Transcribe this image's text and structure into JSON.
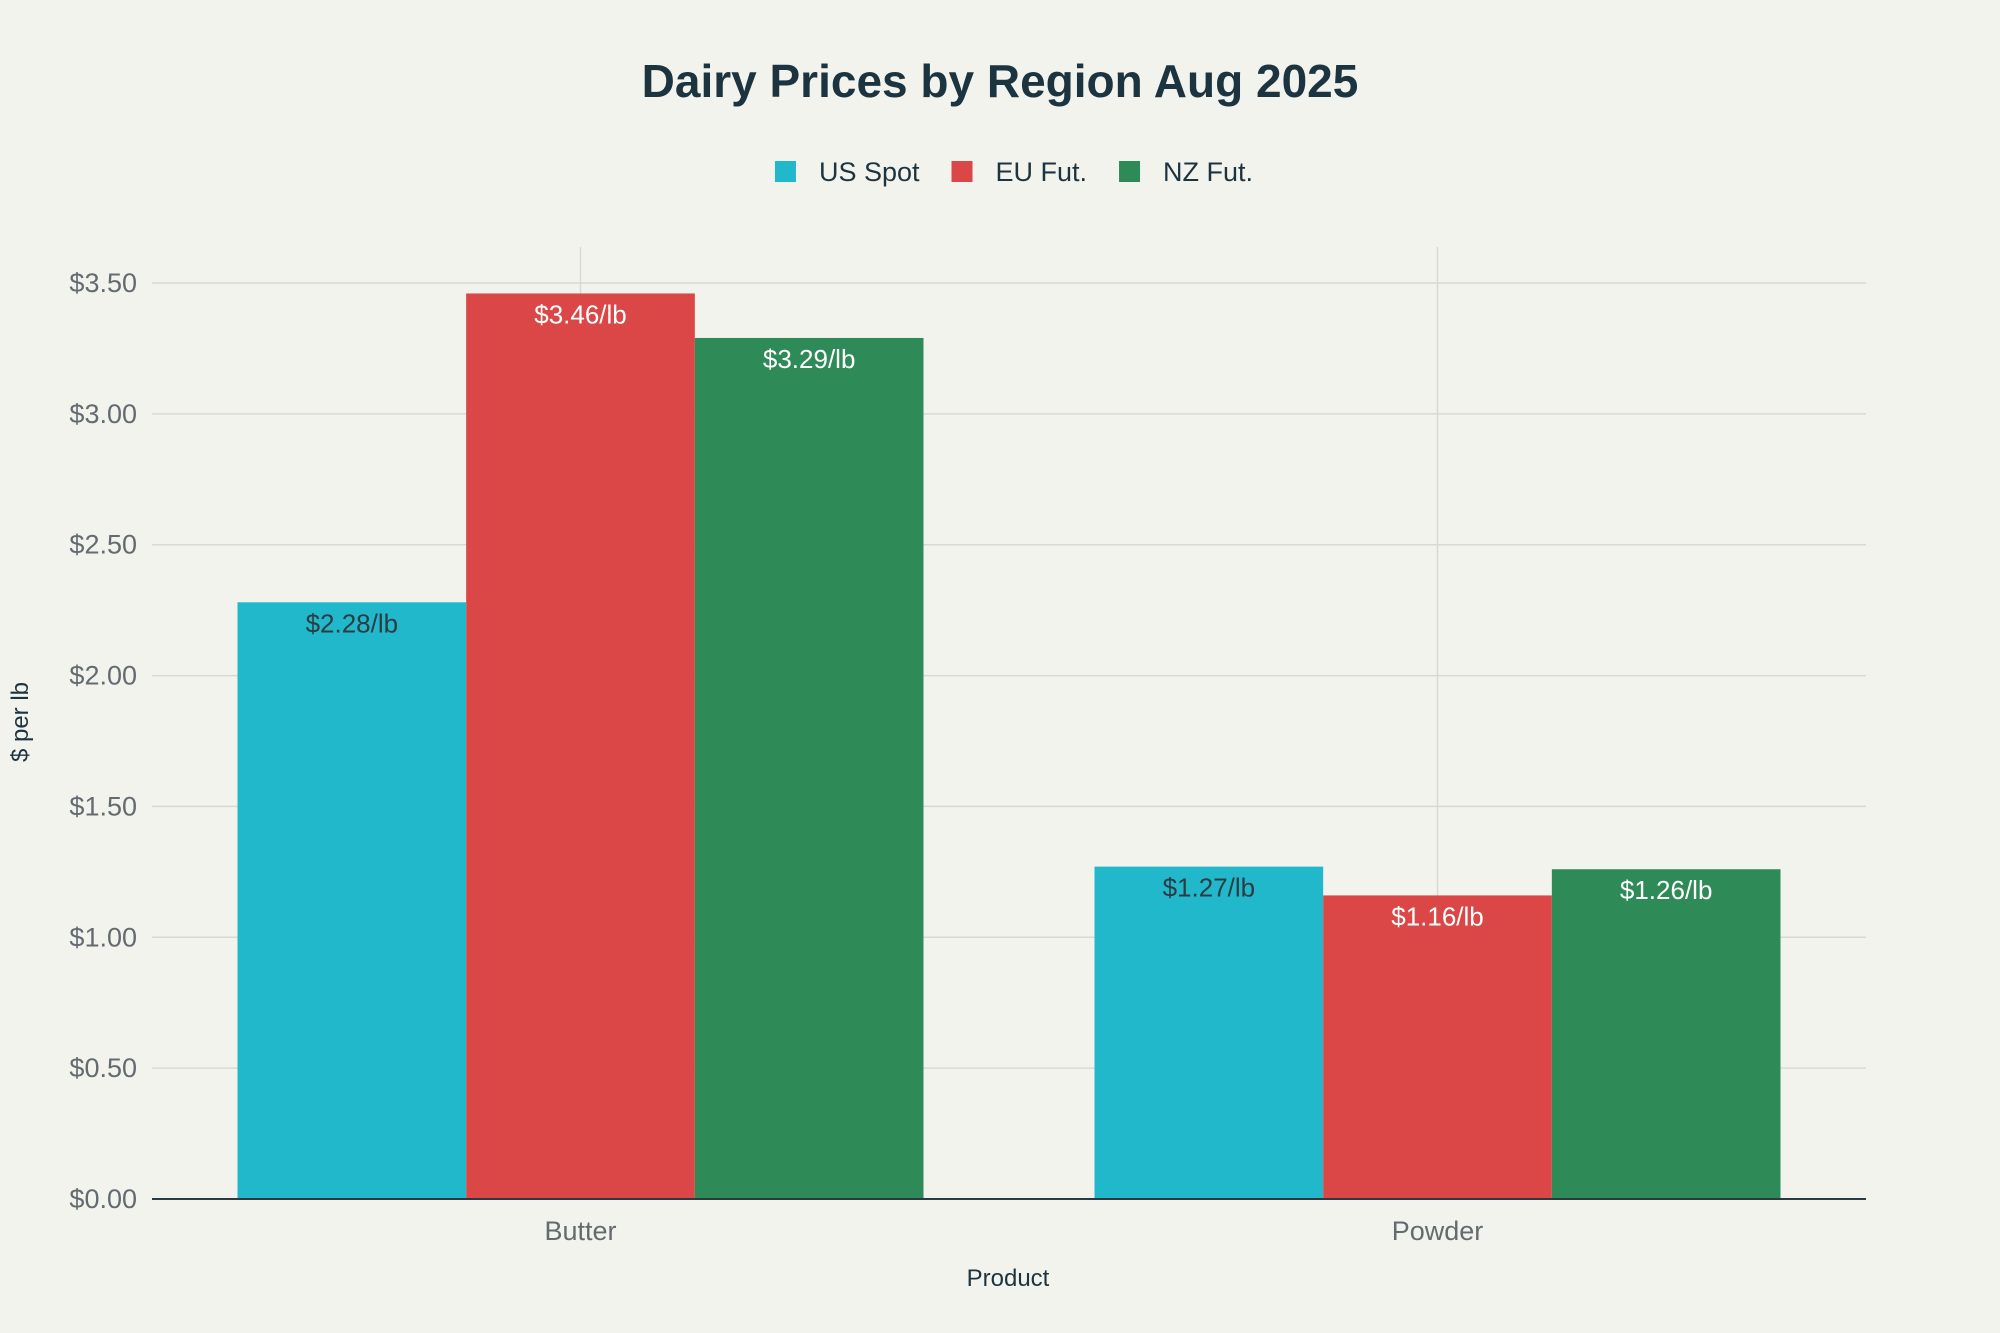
{
  "chart_data": {
    "type": "bar",
    "title": "Dairy Prices by Region Aug 2025",
    "xlabel": "Product",
    "ylabel": "$ per lb",
    "categories": [
      "Butter",
      "Powder"
    ],
    "series": [
      {
        "name": "US Spot",
        "color": "#21b8cc",
        "values": [
          2.28,
          1.27
        ],
        "labels": [
          "$2.28/lb",
          "$1.27/lb"
        ],
        "label_color": "#2e3b42"
      },
      {
        "name": "EU Fut.",
        "color": "#db4646",
        "values": [
          3.46,
          1.16
        ],
        "labels": [
          "$3.46/lb",
          "$1.16/lb"
        ],
        "label_color": "#ffffff"
      },
      {
        "name": "NZ Fut.",
        "color": "#2e8b57",
        "values": [
          3.29,
          1.26
        ],
        "labels": [
          "$3.29/lb",
          "$1.26/lb"
        ],
        "label_color": "#ffffff"
      }
    ],
    "ylim": [
      0,
      3.5
    ],
    "yticks": [
      0,
      0.5,
      1,
      1.5,
      2,
      2.5,
      3,
      3.5
    ],
    "ytick_labels": [
      "$0.00",
      "$0.50",
      "$1.00",
      "$1.50",
      "$2.00",
      "$2.50",
      "$3.00",
      "$3.50"
    ],
    "legend_position": "top-center",
    "grid": true
  }
}
